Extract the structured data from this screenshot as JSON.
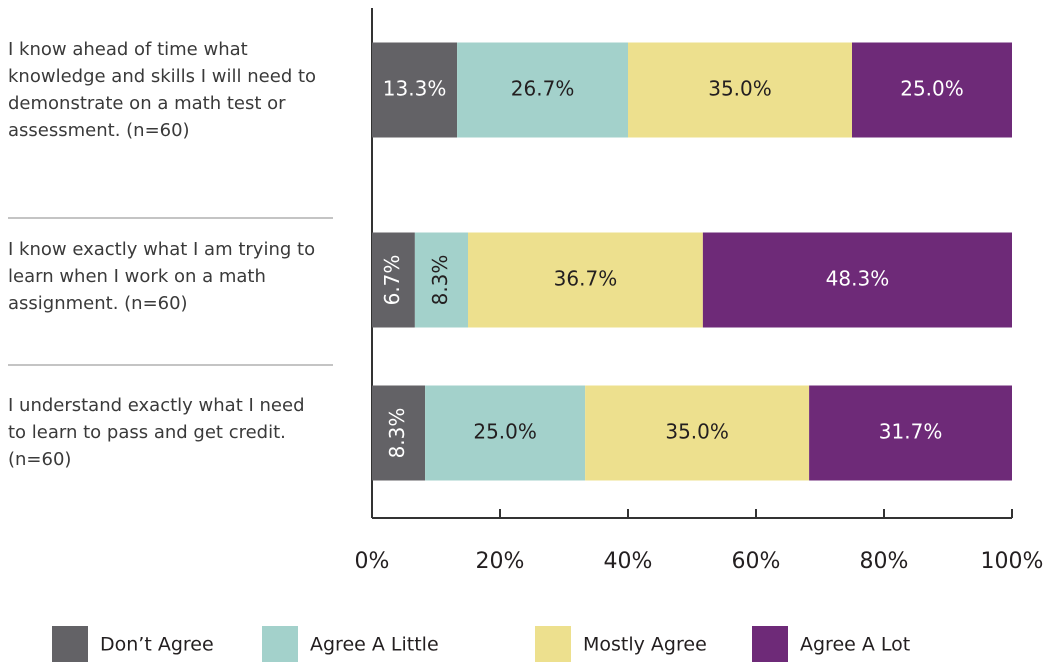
{
  "chart_data": {
    "type": "stacked-bar-horizontal",
    "categories": [
      "I know ahead of time what knowledge and skills I will need to demonstrate on a math test or assessment. (n=60)",
      "I know exactly what I am trying to learn when I work on a math assignment. (n=60)",
      "I understand exactly what I need to learn to pass and get credit. (n=60)"
    ],
    "series": [
      {
        "name": "Don’t Agree",
        "color": "#636266",
        "values": [
          13.3,
          6.7,
          8.3
        ],
        "value_labels": [
          "13.3%",
          "6.7%",
          "8.3%"
        ]
      },
      {
        "name": "Agree A Little",
        "color": "#a3d1cb",
        "values": [
          26.7,
          8.3,
          25.0
        ],
        "value_labels": [
          "26.7%",
          "8.3%",
          "25.0%"
        ]
      },
      {
        "name": "Mostly Agree",
        "color": "#ede08e",
        "values": [
          35.0,
          36.7,
          35.0
        ],
        "value_labels": [
          "35.0%",
          "36.7%",
          "35.0%"
        ]
      },
      {
        "name": "Agree A Lot",
        "color": "#6e2a78",
        "values": [
          25.0,
          48.3,
          31.7
        ],
        "value_labels": [
          "25.0%",
          "48.3%",
          "31.7%"
        ]
      }
    ],
    "xlim": [
      0,
      100
    ],
    "xticks": [
      {
        "value": 0,
        "label": "0%"
      },
      {
        "value": 20,
        "label": "20%"
      },
      {
        "value": 40,
        "label": "40%"
      },
      {
        "value": 60,
        "label": "60%"
      },
      {
        "value": 80,
        "label": "80%"
      },
      {
        "value": 100,
        "label": "100%"
      }
    ],
    "legend": "bottom"
  }
}
